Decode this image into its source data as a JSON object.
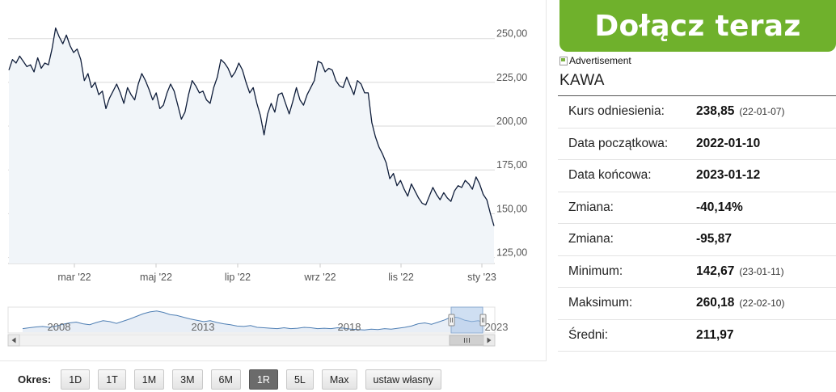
{
  "join_button": "Dołącz teraz",
  "ad_label": "Advertisement",
  "asset_title": "KAWA",
  "stats": [
    {
      "label": "Kurs odniesienia:",
      "value": "238,85",
      "date": "(22-01-07)"
    },
    {
      "label": "Data początkowa:",
      "value": "2022-01-10",
      "date": ""
    },
    {
      "label": "Data końcowa:",
      "value": "2023-01-12",
      "date": ""
    },
    {
      "label": "Zmiana:",
      "value": "-40,14%",
      "date": ""
    },
    {
      "label": "Zmiana:",
      "value": "-95,87",
      "date": ""
    },
    {
      "label": "Minimum:",
      "value": "142,67",
      "date": "(23-01-11)"
    },
    {
      "label": "Maksimum:",
      "value": "260,18",
      "date": "(22-02-10)"
    },
    {
      "label": "Średni:",
      "value": "211,97",
      "date": ""
    }
  ],
  "period": {
    "label": "Okres:",
    "buttons": [
      "1D",
      "1T",
      "1M",
      "3M",
      "6M",
      "1R",
      "5L",
      "Max",
      "ustaw własny"
    ],
    "active": "1R"
  },
  "colors": {
    "line": "#0f1d3a",
    "area": "#f1f5f9",
    "navigator": "#4f7fb4",
    "accent": "#6fb12c",
    "active_button": "#6b6b6b"
  },
  "chart_data": {
    "type": "area",
    "x_ticks": [
      "mar '22",
      "maj '22",
      "lip '22",
      "wrz '22",
      "lis '22",
      "sty '23"
    ],
    "ylim": [
      125,
      250
    ],
    "y_ticks": [
      "250,00",
      "225,00",
      "200,00",
      "175,00",
      "150,00",
      "125,00"
    ],
    "series": [
      {
        "values": [
          232,
          238,
          236,
          240,
          237,
          234,
          235,
          231,
          239,
          233,
          236,
          235,
          244,
          256,
          251,
          247,
          252,
          246,
          242,
          244,
          238,
          226,
          230,
          222,
          225,
          218,
          220,
          210,
          216,
          220,
          224,
          219,
          213,
          222,
          218,
          215,
          224,
          230,
          226,
          221,
          215,
          219,
          210,
          212,
          219,
          224,
          220,
          212,
          204,
          208,
          218,
          226,
          223,
          219,
          220,
          215,
          213,
          222,
          228,
          238,
          236,
          233,
          228,
          231,
          236,
          232,
          225,
          219,
          222,
          213,
          206,
          195,
          207,
          213,
          208,
          218,
          219,
          213,
          207,
          214,
          222,
          215,
          212,
          218,
          222,
          226,
          237,
          236,
          231,
          233,
          232,
          226,
          223,
          222,
          228,
          223,
          218,
          226,
          224,
          219,
          219,
          202,
          194,
          188,
          184,
          179,
          170,
          173,
          166,
          169,
          164,
          160,
          167,
          163,
          159,
          156,
          155,
          160,
          165,
          161,
          158,
          162,
          159,
          157,
          163,
          166,
          165,
          169,
          167,
          164,
          171,
          167,
          161,
          158,
          150,
          143
        ]
      }
    ],
    "navigator": {
      "x_ticks": [
        "2008",
        "2013",
        "2018",
        "2023"
      ],
      "values": [
        128,
        130,
        132,
        133,
        131,
        134,
        138,
        141,
        143,
        139,
        137,
        142,
        146,
        144,
        140,
        145,
        150,
        156,
        162,
        166,
        168,
        165,
        160,
        158,
        154,
        150,
        147,
        144,
        146,
        142,
        139,
        137,
        134,
        133,
        135,
        131,
        130,
        129,
        128,
        130,
        128,
        129,
        131,
        130,
        128,
        129,
        128,
        130,
        129,
        127,
        126,
        125,
        127,
        126,
        128,
        127,
        129,
        131,
        134,
        139,
        141,
        138,
        143,
        148,
        155,
        153,
        147,
        144,
        146,
        140
      ]
    }
  }
}
